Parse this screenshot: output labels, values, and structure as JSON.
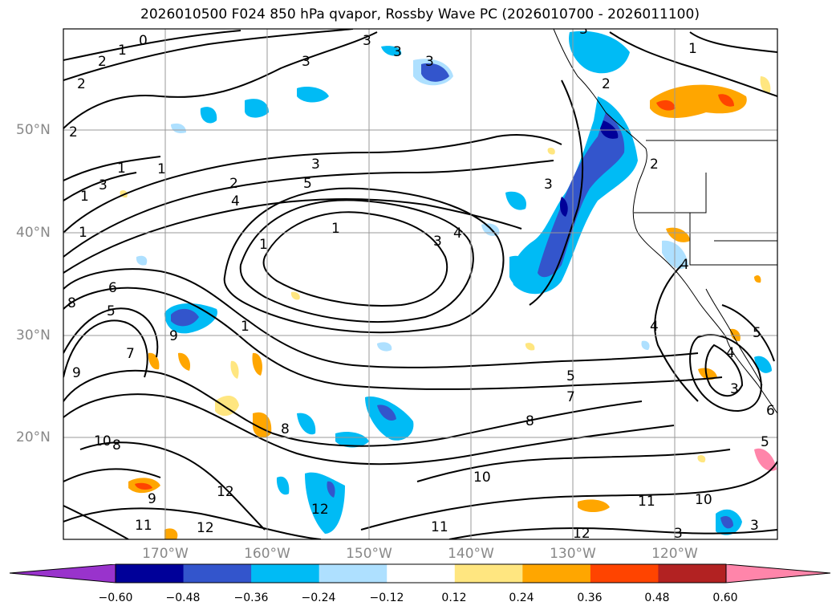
{
  "title": "2026010500 F024 850 hPa qvapor, Rossby Wave PC (2026010700 - 2026011100)",
  "lat_labels": [
    "50°N",
    "40°N",
    "30°N",
    "20°N"
  ],
  "lon_labels": [
    "170°W",
    "160°W",
    "150°W",
    "140°W",
    "130°W",
    "120°W"
  ],
  "colorbar": {
    "ticks": [
      "−0.60",
      "−0.48",
      "−0.36",
      "−0.24",
      "−0.12",
      "0.12",
      "0.24",
      "0.36",
      "0.48",
      "0.60"
    ],
    "colors": [
      "#9933cc",
      "#000099",
      "#3355cc",
      "#00bbf5",
      "#aee0ff",
      "#ffffff",
      "#ffe680",
      "#ffa600",
      "#ff4400",
      "#b22222",
      "#ff85aa"
    ]
  },
  "contour_labels": [
    "0",
    "1",
    "2",
    "2",
    "3",
    "3",
    "3",
    "3",
    "3",
    "1",
    "2",
    "2",
    "3",
    "5",
    "4",
    "1",
    "1",
    "2",
    "3",
    "4",
    "4",
    "6",
    "8",
    "5",
    "9",
    "7",
    "1",
    "1",
    "1",
    "9",
    "8",
    "8",
    "5",
    "7",
    "8",
    "10",
    "10",
    "11",
    "12",
    "12",
    "11",
    "12",
    "11",
    "12",
    "10",
    "9",
    "3",
    "4",
    "4",
    "5",
    "5",
    "6",
    "2",
    "1",
    "3",
    "1",
    "3",
    "3",
    "3"
  ]
}
